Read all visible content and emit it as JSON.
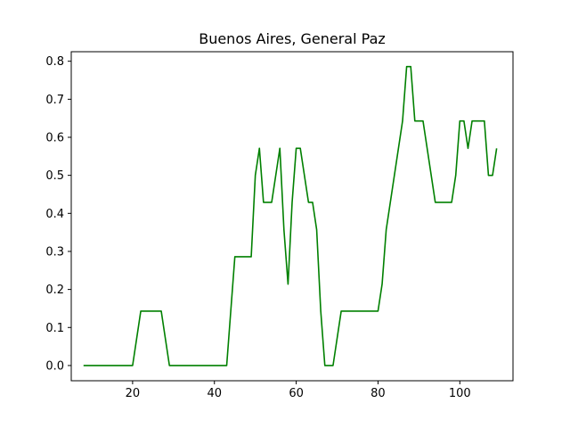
{
  "chart_data": {
    "type": "line",
    "title": "Buenos Aires, General Paz",
    "xlabel": "",
    "ylabel": "",
    "xlim": [
      5.0,
      113.0
    ],
    "ylim": [
      -0.04,
      0.825
    ],
    "xticks": [
      20,
      40,
      60,
      80,
      100
    ],
    "yticks": [
      0.0,
      0.1,
      0.2,
      0.3,
      0.4,
      0.5,
      0.6,
      0.7,
      0.8
    ],
    "xtick_labels": [
      "20",
      "40",
      "60",
      "80",
      "100"
    ],
    "ytick_labels": [
      "0.0",
      "0.1",
      "0.2",
      "0.3",
      "0.4",
      "0.5",
      "0.6",
      "0.7",
      "0.8"
    ],
    "grid": false,
    "legend": "none",
    "series": [
      {
        "color": "#008000",
        "x": [
          8,
          20,
          22,
          27,
          29,
          43,
          45,
          49,
          50,
          51,
          52,
          54,
          56,
          57,
          58,
          59,
          60,
          61,
          63,
          64,
          65,
          66,
          67,
          69,
          71,
          80,
          81,
          82,
          86,
          87,
          88,
          89,
          91,
          94,
          98,
          99,
          100,
          101,
          102,
          103,
          106,
          107,
          108,
          109
        ],
        "y": [
          0,
          0,
          0.143,
          0.143,
          0,
          0,
          0.286,
          0.286,
          0.5,
          0.571,
          0.429,
          0.429,
          0.571,
          0.357,
          0.214,
          0.429,
          0.571,
          0.571,
          0.429,
          0.429,
          0.357,
          0.143,
          0,
          0,
          0.143,
          0.143,
          0.214,
          0.357,
          0.643,
          0.786,
          0.786,
          0.643,
          0.643,
          0.429,
          0.429,
          0.5,
          0.643,
          0.643,
          0.571,
          0.643,
          0.643,
          0.5,
          0.5,
          0.571
        ]
      }
    ]
  }
}
